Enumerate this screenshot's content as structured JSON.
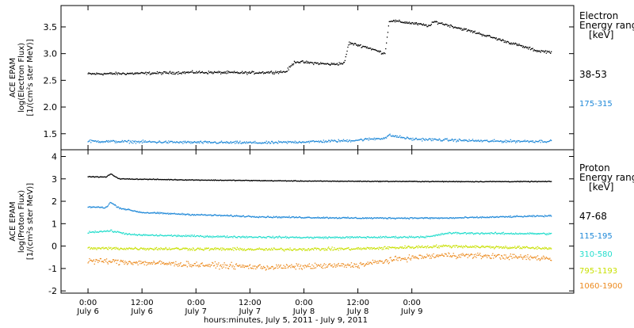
{
  "chart_data": [
    {
      "type": "scatter",
      "panel": "electron",
      "ylabel_lines": [
        "ACE EPAM",
        "log(Electron Flux)",
        "[1/(cm²s ster MeV)]"
      ],
      "ylim": [
        1.2,
        3.9
      ],
      "yticks": [
        1.5,
        2.0,
        2.5,
        3.0,
        3.5
      ],
      "legend_title": [
        "Electron",
        "Energy range",
        "[keV]"
      ],
      "series": [
        {
          "name": "38-53",
          "color": "#000000",
          "profile": [
            [
              0,
              2.62
            ],
            [
              12,
              2.63
            ],
            [
              24,
              2.65
            ],
            [
              36,
              2.64
            ],
            [
              44,
              2.66
            ],
            [
              46,
              2.85
            ],
            [
              54,
              2.8
            ],
            [
              57,
              2.82
            ],
            [
              58,
              3.2
            ],
            [
              62,
              3.12
            ],
            [
              66,
              3.0
            ],
            [
              67,
              3.62
            ],
            [
              72,
              3.57
            ],
            [
              76,
              3.52
            ],
            [
              77,
              3.6
            ],
            [
              86,
              3.4
            ],
            [
              94,
              3.2
            ],
            [
              100,
              3.05
            ],
            [
              103,
              3.03
            ]
          ],
          "noise": 0.03
        },
        {
          "name": "175-315",
          "color": "#1e88d8",
          "profile": [
            [
              0,
              1.36
            ],
            [
              20,
              1.34
            ],
            [
              40,
              1.33
            ],
            [
              58,
              1.37
            ],
            [
              66,
              1.42
            ],
            [
              67,
              1.47
            ],
            [
              72,
              1.4
            ],
            [
              90,
              1.36
            ],
            [
              103,
              1.36
            ]
          ],
          "noise": 0.03
        }
      ]
    },
    {
      "type": "scatter",
      "panel": "proton",
      "ylabel_lines": [
        "ACE EPAM",
        "log(Proton Flux)",
        "[1/(cm²s ster MeV)]"
      ],
      "ylim": [
        -2.1,
        4.3
      ],
      "yticks": [
        -2,
        -1,
        0,
        1,
        2,
        3,
        4
      ],
      "legend_title": [
        "Proton",
        "Energy range",
        "[keV]"
      ],
      "series": [
        {
          "name": "47-68",
          "color": "#000000",
          "profile": [
            [
              0,
              3.1
            ],
            [
              4,
              3.08
            ],
            [
              5,
              3.22
            ],
            [
              7,
              3.0
            ],
            [
              24,
              2.95
            ],
            [
              50,
              2.9
            ],
            [
              80,
              2.88
            ],
            [
              103,
              2.88
            ]
          ],
          "noise": 0.02
        },
        {
          "name": "115-195",
          "color": "#1e88d8",
          "profile": [
            [
              0,
              1.75
            ],
            [
              4,
              1.72
            ],
            [
              5,
              1.95
            ],
            [
              7,
              1.7
            ],
            [
              12,
              1.5
            ],
            [
              24,
              1.4
            ],
            [
              40,
              1.3
            ],
            [
              60,
              1.25
            ],
            [
              80,
              1.25
            ],
            [
              103,
              1.35
            ]
          ],
          "noise": 0.04
        },
        {
          "name": "310-580",
          "color": "#22ddcc",
          "profile": [
            [
              0,
              0.62
            ],
            [
              5,
              0.68
            ],
            [
              10,
              0.5
            ],
            [
              30,
              0.42
            ],
            [
              50,
              0.38
            ],
            [
              70,
              0.4
            ],
            [
              76,
              0.42
            ],
            [
              80,
              0.58
            ],
            [
              103,
              0.55
            ]
          ],
          "noise": 0.05
        },
        {
          "name": "795-1193",
          "color": "#c8e000",
          "profile": [
            [
              0,
              -0.1
            ],
            [
              20,
              -0.12
            ],
            [
              40,
              -0.15
            ],
            [
              60,
              -0.12
            ],
            [
              80,
              0.0
            ],
            [
              103,
              -0.1
            ]
          ],
          "noise": 0.08
        },
        {
          "name": "1060-1900",
          "color": "#ec8a1e",
          "profile": [
            [
              0,
              -0.65
            ],
            [
              20,
              -0.8
            ],
            [
              40,
              -0.95
            ],
            [
              60,
              -0.85
            ],
            [
              70,
              -0.55
            ],
            [
              80,
              -0.4
            ],
            [
              90,
              -0.45
            ],
            [
              103,
              -0.55
            ]
          ],
          "noise": 0.15
        }
      ]
    }
  ],
  "x_axis": {
    "range_hours": [
      -6,
      108
    ],
    "data_span_hours": [
      0,
      103
    ],
    "ticks": [
      {
        "h": 0,
        "time": "0:00",
        "date": "July 6"
      },
      {
        "h": 12,
        "time": "12:00",
        "date": "July 6"
      },
      {
        "h": 24,
        "time": "0:00",
        "date": "July 7"
      },
      {
        "h": 36,
        "time": "12:00",
        "date": "July 7"
      },
      {
        "h": 48,
        "time": "0:00",
        "date": "July 8"
      },
      {
        "h": 60,
        "time": "12:00",
        "date": "July 8"
      },
      {
        "h": 72,
        "time": "0:00",
        "date": "July 9"
      }
    ],
    "label": "hours:minutes, July  5, 2011 - July  9, 2011"
  }
}
